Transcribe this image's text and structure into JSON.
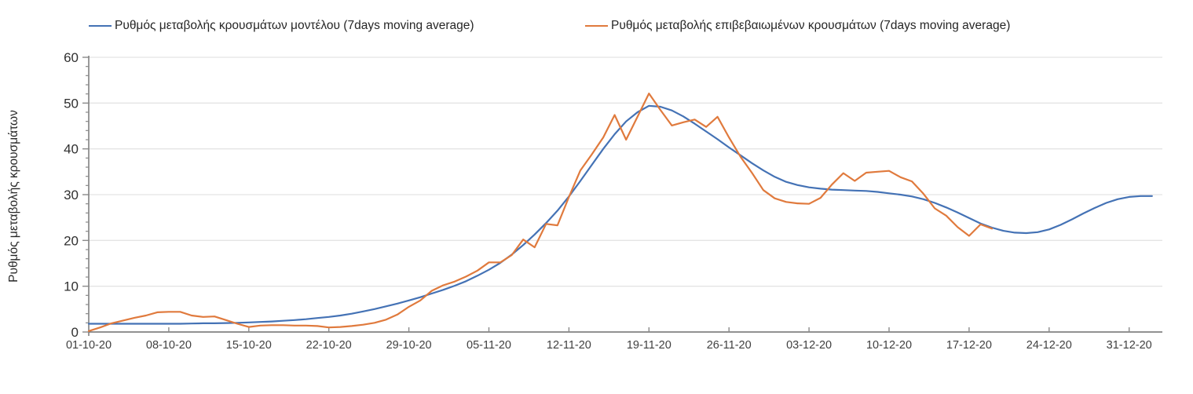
{
  "colors": {
    "model_line": "#4472b5",
    "confirmed_line": "#e07a3d",
    "gridline": "#e4e4e4",
    "axis_line": "#6e6e6e",
    "tick_mark": "#8a8a8a",
    "tick_text": "#404040",
    "background": "#ffffff"
  },
  "legend": {
    "items": [
      {
        "label": "Ρυθμός μεταβολής κρουσμάτων μοντέλου (7days moving average)",
        "color": "#4472b5",
        "x": 113
      },
      {
        "label": "Ρυθμός μεταβολής επιβεβαιωμένων κρουσμάτων (7days moving average)",
        "color": "#e07a3d",
        "x": 745
      }
    ]
  },
  "chart_data": {
    "type": "line",
    "title": "",
    "xlabel": "",
    "ylabel": "Ρυθμός μεταβολής κρουσμάτων",
    "ylim": [
      0,
      60
    ],
    "y_major_ticks": [
      0,
      10,
      20,
      30,
      40,
      50,
      60
    ],
    "y_minor_step": 2,
    "grid": "horizontal-only",
    "legend_position": "top",
    "x_tick_every_days": 7,
    "x_tick_labels": [
      "01-10-20",
      "08-10-20",
      "15-10-20",
      "22-10-20",
      "29-10-20",
      "05-11-20",
      "12-11-20",
      "19-11-20",
      "26-11-20",
      "03-12-20",
      "10-12-20",
      "17-12-20",
      "24-12-20",
      "31-12-20"
    ],
    "dates": [
      "01-10-20",
      "02-10-20",
      "03-10-20",
      "04-10-20",
      "05-10-20",
      "06-10-20",
      "07-10-20",
      "08-10-20",
      "09-10-20",
      "10-10-20",
      "11-10-20",
      "12-10-20",
      "13-10-20",
      "14-10-20",
      "15-10-20",
      "16-10-20",
      "17-10-20",
      "18-10-20",
      "19-10-20",
      "20-10-20",
      "21-10-20",
      "22-10-20",
      "23-10-20",
      "24-10-20",
      "25-10-20",
      "26-10-20",
      "27-10-20",
      "28-10-20",
      "29-10-20",
      "30-10-20",
      "31-10-20",
      "01-11-20",
      "02-11-20",
      "03-11-20",
      "04-11-20",
      "05-11-20",
      "06-11-20",
      "07-11-20",
      "08-11-20",
      "09-11-20",
      "10-11-20",
      "11-11-20",
      "12-11-20",
      "13-11-20",
      "14-11-20",
      "15-11-20",
      "16-11-20",
      "17-11-20",
      "18-11-20",
      "19-11-20",
      "20-11-20",
      "21-11-20",
      "22-11-20",
      "23-11-20",
      "24-11-20",
      "25-11-20",
      "26-11-20",
      "27-11-20",
      "28-11-20",
      "29-11-20",
      "30-11-20",
      "01-12-20",
      "02-12-20",
      "03-12-20",
      "04-12-20",
      "05-12-20",
      "06-12-20",
      "07-12-20",
      "08-12-20",
      "09-12-20",
      "10-12-20",
      "11-12-20",
      "12-12-20",
      "13-12-20",
      "14-12-20",
      "15-12-20",
      "16-12-20",
      "17-12-20",
      "18-12-20",
      "19-12-20",
      "20-12-20",
      "21-12-20",
      "22-12-20",
      "23-12-20",
      "24-12-20",
      "25-12-20",
      "26-12-20",
      "27-12-20",
      "28-12-20",
      "29-12-20",
      "30-12-20",
      "31-12-20",
      "01-01-21",
      "02-01-21"
    ],
    "series": [
      {
        "name": "Ρυθμός μεταβολής κρουσμάτων μοντέλου (7days moving average)",
        "color": "#4472b5",
        "values": [
          1.8,
          1.8,
          1.8,
          1.8,
          1.8,
          1.8,
          1.8,
          1.8,
          1.8,
          1.85,
          1.9,
          1.9,
          1.95,
          2.0,
          2.1,
          2.2,
          2.3,
          2.45,
          2.6,
          2.8,
          3.05,
          3.3,
          3.6,
          4.0,
          4.5,
          5.0,
          5.6,
          6.2,
          6.9,
          7.6,
          8.4,
          9.2,
          10.1,
          11.1,
          12.3,
          13.6,
          15.1,
          16.9,
          19.0,
          21.3,
          23.8,
          26.5,
          29.6,
          33.0,
          36.5,
          40.0,
          43.2,
          46.0,
          48.0,
          49.4,
          49.2,
          48.4,
          47.1,
          45.5,
          43.8,
          42.1,
          40.3,
          38.6,
          36.9,
          35.3,
          33.9,
          32.8,
          32.1,
          31.6,
          31.3,
          31.1,
          31.0,
          30.9,
          30.8,
          30.6,
          30.3,
          30.0,
          29.6,
          29.0,
          28.2,
          27.2,
          26.1,
          24.9,
          23.7,
          22.8,
          22.1,
          21.7,
          21.6,
          21.8,
          22.4,
          23.4,
          24.6,
          25.9,
          27.1,
          28.2,
          29.0,
          29.5,
          29.7,
          29.7
        ]
      },
      {
        "name": "Ρυθμός μεταβολής επιβεβαιωμένων κρουσμάτων (7days moving average)",
        "color": "#e07a3d",
        "values": [
          0.2,
          1.0,
          1.9,
          2.5,
          3.1,
          3.6,
          4.3,
          4.4,
          4.4,
          3.6,
          3.3,
          3.4,
          2.6,
          1.8,
          1.1,
          1.4,
          1.5,
          1.5,
          1.4,
          1.4,
          1.3,
          1.0,
          1.1,
          1.3,
          1.6,
          2.0,
          2.7,
          3.8,
          5.5,
          6.9,
          9.0,
          10.2,
          11.0,
          12.1,
          13.4,
          15.2,
          15.2,
          16.8,
          20.2,
          18.5,
          23.6,
          23.3,
          29.5,
          35.3,
          38.8,
          42.5,
          47.4,
          42.0,
          47.0,
          52.1,
          48.5,
          45.1,
          45.8,
          46.4,
          44.8,
          47.0,
          42.5,
          38.3,
          34.8,
          31.0,
          29.2,
          28.4,
          28.1,
          28.0,
          29.3,
          32.2,
          34.7,
          33.0,
          34.8,
          35.0,
          35.2,
          33.8,
          32.9,
          30.2,
          27.0,
          25.4,
          22.9,
          21.0,
          23.5,
          22.6
        ]
      }
    ]
  }
}
